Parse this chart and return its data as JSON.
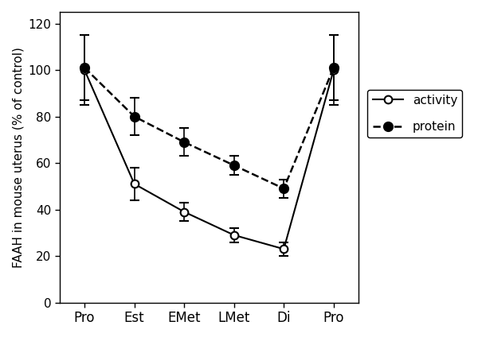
{
  "x_labels": [
    "Pro",
    "Est",
    "EMet",
    "LMet",
    "Di",
    "Pro"
  ],
  "x_positions": [
    0,
    1,
    2,
    3,
    4,
    5
  ],
  "activity_values": [
    100,
    51,
    39,
    29,
    23,
    100
  ],
  "activity_errors": [
    15,
    7,
    4,
    3,
    3,
    15
  ],
  "protein_values": [
    101,
    80,
    69,
    59,
    49,
    101
  ],
  "protein_errors": [
    14,
    8,
    6,
    4,
    4,
    14
  ],
  "ylabel": "FAAH in mouse uterus (% of control)",
  "ylim": [
    0,
    125
  ],
  "yticks": [
    0,
    20,
    40,
    60,
    80,
    100,
    120
  ],
  "legend_activity": "activity",
  "legend_protein": "protein",
  "background_color": "#ffffff",
  "figsize": [
    6.0,
    4.24
  ],
  "dpi": 100
}
